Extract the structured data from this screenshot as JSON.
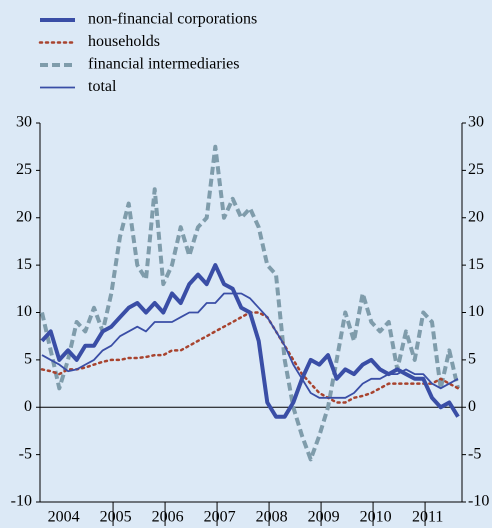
{
  "chart_data": {
    "type": "line",
    "categories": [
      null,
      null,
      null,
      "2004",
      null,
      null,
      null,
      null,
      null,
      "2005",
      null,
      null,
      null,
      null,
      null,
      "2006",
      null,
      null,
      null,
      null,
      null,
      "2007",
      null,
      null,
      null,
      null,
      null,
      "2008",
      null,
      null,
      null,
      null,
      null,
      "2009",
      null,
      null,
      null,
      null,
      null,
      "2010",
      null,
      null,
      null,
      null,
      null,
      "2011",
      null,
      null,
      null
    ],
    "series": [
      {
        "name": "non-financial corporations",
        "color": "#3a4ea6",
        "line_style": "solid",
        "width": 4,
        "values": [
          7,
          8,
          5,
          6,
          5,
          6.5,
          6.5,
          8,
          8.5,
          9.5,
          10.5,
          11,
          10,
          11,
          10,
          12,
          11,
          13,
          14,
          13,
          15,
          13,
          12.5,
          10.5,
          10,
          7,
          0.5,
          -1,
          -1,
          0.5,
          3,
          5,
          4.5,
          5.5,
          3,
          4,
          3.5,
          4.5,
          5,
          4,
          3.5,
          4,
          3.5,
          3,
          3,
          1,
          0,
          0.5,
          -1
        ]
      },
      {
        "name": "households",
        "color": "#a8432e",
        "line_style": "dotted",
        "width": 2.5,
        "values": [
          4,
          3.8,
          3.5,
          4,
          4,
          4.2,
          4.5,
          4.8,
          5,
          5,
          5.2,
          5.2,
          5.3,
          5.5,
          5.5,
          6,
          6,
          6.5,
          7,
          7.5,
          8,
          8.5,
          9,
          9.5,
          10,
          10,
          9.5,
          8,
          6.5,
          5,
          3.5,
          2.5,
          1.5,
          1,
          0.5,
          0.5,
          1,
          1.2,
          1.5,
          2,
          2.5,
          2.5,
          2.5,
          2.5,
          2.5,
          2.5,
          3,
          2.5,
          2
        ]
      },
      {
        "name": "financial intermediaries",
        "color": "#7f9cab",
        "line_style": "dashed",
        "width": 4,
        "values": [
          10,
          6,
          2,
          5,
          9,
          8,
          10.5,
          8,
          12,
          18,
          21.5,
          15,
          13.5,
          23,
          13,
          15,
          19,
          16,
          19,
          20,
          27.5,
          20,
          22,
          20,
          21,
          19,
          15,
          14,
          5,
          0,
          -3,
          -5.5,
          -3,
          0,
          5,
          10,
          7,
          12,
          9,
          8,
          9,
          4,
          8,
          5,
          10,
          9,
          2,
          6,
          2
        ]
      },
      {
        "name": "total",
        "color": "#3a4ea6",
        "line_style": "solid",
        "width": 1.8,
        "values": [
          5.5,
          5,
          4.5,
          3.8,
          4,
          4.5,
          5,
          6,
          6.5,
          7.5,
          8,
          8.5,
          8,
          9,
          9,
          9,
          9.5,
          10,
          10,
          11,
          11,
          12,
          12,
          12,
          11.5,
          10.5,
          9.5,
          8,
          6.5,
          4.5,
          3,
          1.5,
          1,
          1,
          1,
          1,
          1.5,
          2.5,
          3,
          3,
          3.5,
          3.5,
          4,
          3.5,
          3.5,
          2.5,
          2,
          2.5,
          3
        ]
      }
    ],
    "ylim": [
      -10,
      30
    ],
    "yticks": [
      -10,
      -5,
      0,
      5,
      10,
      15,
      20,
      25,
      30
    ],
    "zero_line": true,
    "legend": "top-left"
  }
}
